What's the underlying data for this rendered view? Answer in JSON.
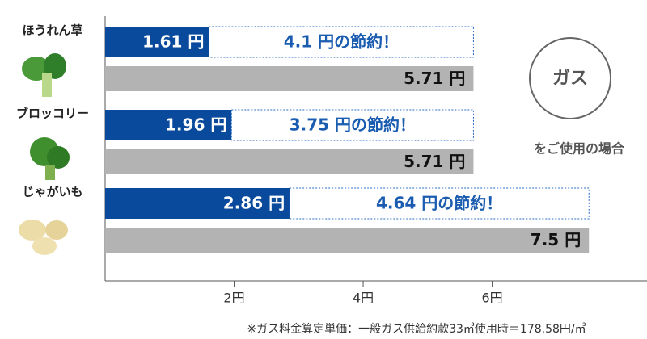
{
  "chart_data": {
    "type": "bar",
    "orientation": "horizontal",
    "categories": [
      "ほうれん草",
      "ブロッコリー",
      "じゃがいも"
    ],
    "series": [
      {
        "color": "#0a4a9c",
        "values": [
          1.61,
          1.96,
          2.86
        ],
        "value_labels": [
          "1.61 円",
          "1.96 円",
          "2.86 円"
        ]
      },
      {
        "color": "#ffffff",
        "stroke": "#2a6cc4",
        "stack_on": 0,
        "values": [
          4.1,
          3.75,
          4.64
        ],
        "value_labels": [
          "4.1 円の節約！",
          "3.75 円の節約！",
          "4.64 円の節約！"
        ]
      },
      {
        "color": "#b3b3b3",
        "values": [
          5.71,
          5.71,
          7.5
        ],
        "value_labels": [
          "5.71 円",
          "5.71 円",
          "7.5 円"
        ]
      }
    ],
    "xlim": [
      0,
      8.4
    ],
    "xticks": [
      {
        "value": 2,
        "label": "2円"
      },
      {
        "value": 4,
        "label": "4円"
      },
      {
        "value": 6,
        "label": "6円"
      }
    ],
    "annotations": [
      "ガス",
      "をご使用の場合"
    ],
    "footnote": "※ガス料金算定単価：一般ガス供給約款33㎥使用時＝178.58円/㎥"
  }
}
